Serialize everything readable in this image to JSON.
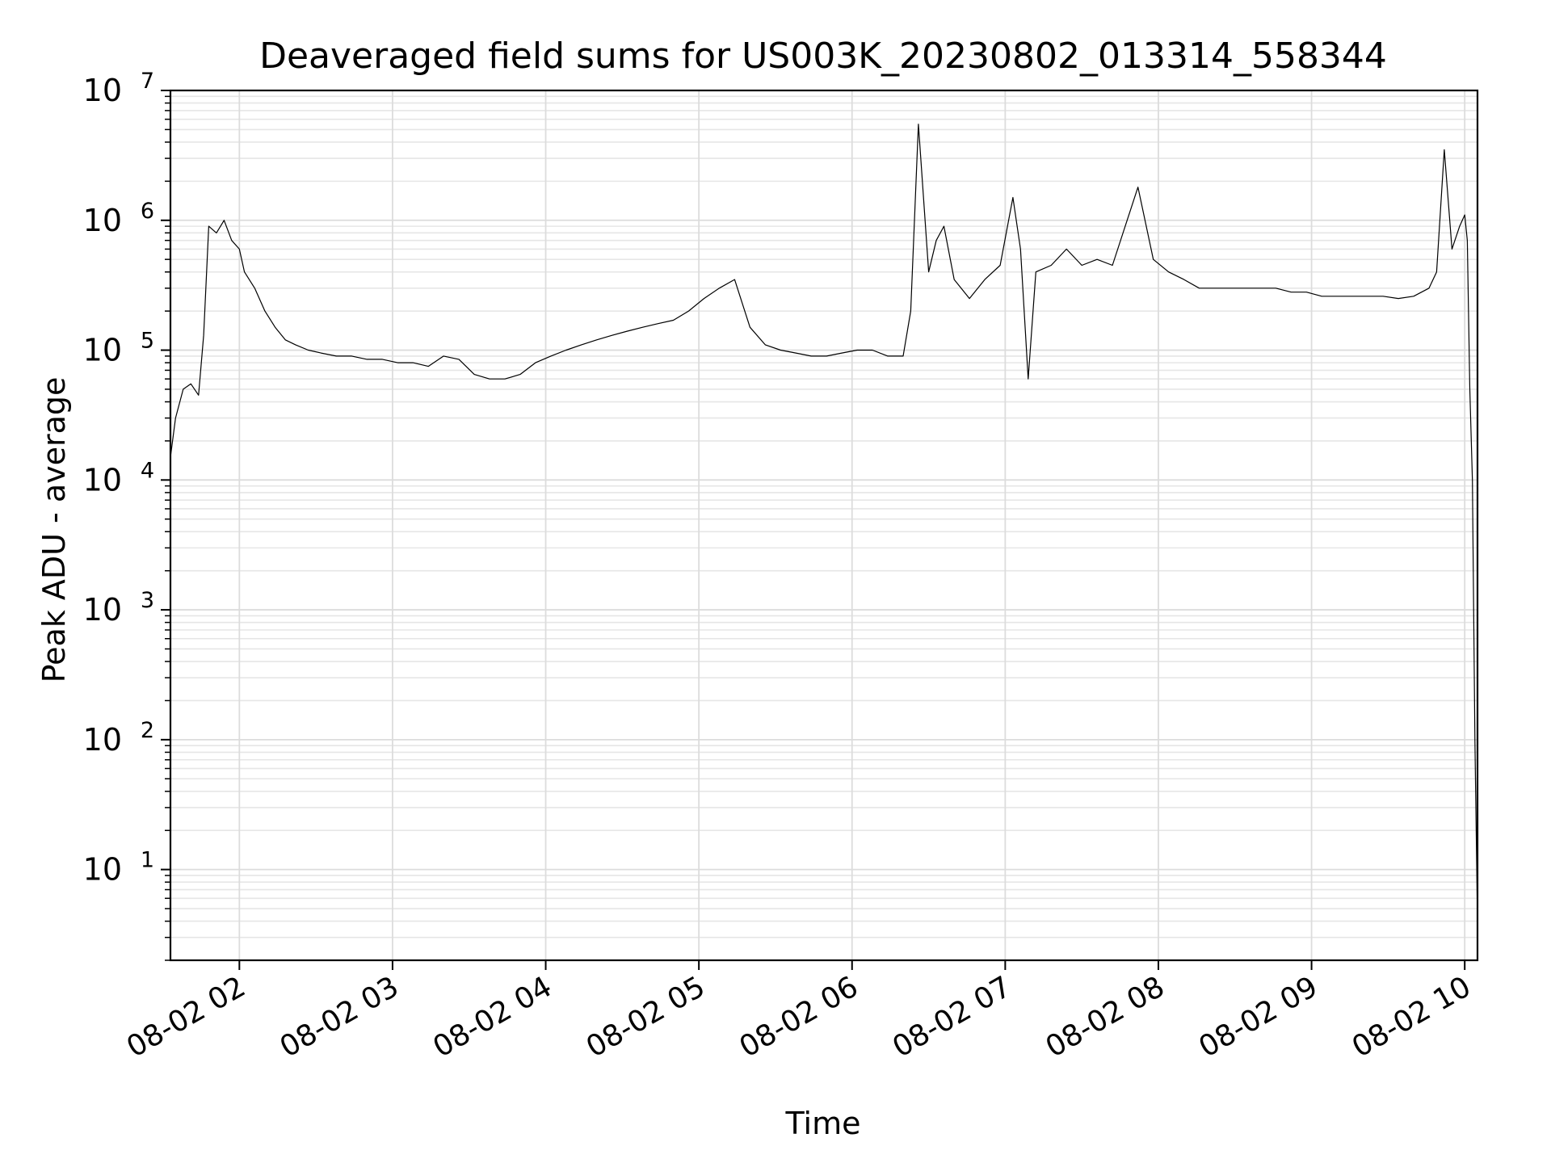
{
  "chart_data": {
    "type": "line",
    "title": "Deaveraged field sums for US003K_20230802_013314_558344",
    "xlabel": "Time",
    "ylabel": "Peak ADU - average",
    "yscale": "log",
    "ylim": [
      2,
      10000000
    ],
    "xlim": [
      "2023-08-02 01:33",
      "2023-08-02 10:05"
    ],
    "grid": true,
    "line_color": "#000000",
    "x_ticks": [
      {
        "value": "2023-08-02 02:00",
        "label": "08-02 02"
      },
      {
        "value": "2023-08-02 03:00",
        "label": "08-02 03"
      },
      {
        "value": "2023-08-02 04:00",
        "label": "08-02 04"
      },
      {
        "value": "2023-08-02 05:00",
        "label": "08-02 05"
      },
      {
        "value": "2023-08-02 06:00",
        "label": "08-02 06"
      },
      {
        "value": "2023-08-02 07:00",
        "label": "08-02 07"
      },
      {
        "value": "2023-08-02 08:00",
        "label": "08-02 08"
      },
      {
        "value": "2023-08-02 09:00",
        "label": "08-02 09"
      },
      {
        "value": "2023-08-02 10:00",
        "label": "08-02 10"
      }
    ],
    "y_ticks": [
      {
        "value": 10,
        "base": "10",
        "exp": "1"
      },
      {
        "value": 100,
        "base": "10",
        "exp": "2"
      },
      {
        "value": 1000,
        "base": "10",
        "exp": "3"
      },
      {
        "value": 10000,
        "base": "10",
        "exp": "4"
      },
      {
        "value": 100000,
        "base": "10",
        "exp": "5"
      },
      {
        "value": 1000000,
        "base": "10",
        "exp": "6"
      },
      {
        "value": 10000000,
        "base": "10",
        "exp": "7"
      }
    ],
    "series": [
      {
        "x": [
          "2023-08-02 01:33",
          "2023-08-02 01:35",
          "2023-08-02 01:38",
          "2023-08-02 01:41",
          "2023-08-02 01:44",
          "2023-08-02 01:46",
          "2023-08-02 01:48",
          "2023-08-02 01:51",
          "2023-08-02 01:54",
          "2023-08-02 01:57",
          "2023-08-02 02:00",
          "2023-08-02 02:02",
          "2023-08-02 02:06",
          "2023-08-02 02:10",
          "2023-08-02 02:14",
          "2023-08-02 02:18",
          "2023-08-02 02:22",
          "2023-08-02 02:27",
          "2023-08-02 02:32",
          "2023-08-02 02:38",
          "2023-08-02 02:44",
          "2023-08-02 02:50",
          "2023-08-02 02:56",
          "2023-08-02 03:02",
          "2023-08-02 03:08",
          "2023-08-02 03:14",
          "2023-08-02 03:20",
          "2023-08-02 03:26",
          "2023-08-02 03:32",
          "2023-08-02 03:38",
          "2023-08-02 03:44",
          "2023-08-02 03:50",
          "2023-08-02 03:56",
          "2023-08-02 04:02",
          "2023-08-02 04:08",
          "2023-08-02 04:14",
          "2023-08-02 04:20",
          "2023-08-02 04:26",
          "2023-08-02 04:32",
          "2023-08-02 04:38",
          "2023-08-02 04:44",
          "2023-08-02 04:50",
          "2023-08-02 04:56",
          "2023-08-02 05:02",
          "2023-08-02 05:08",
          "2023-08-02 05:14",
          "2023-08-02 05:20",
          "2023-08-02 05:26",
          "2023-08-02 05:32",
          "2023-08-02 05:38",
          "2023-08-02 05:44",
          "2023-08-02 05:50",
          "2023-08-02 05:56",
          "2023-08-02 06:02",
          "2023-08-02 06:08",
          "2023-08-02 06:14",
          "2023-08-02 06:20",
          "2023-08-02 06:23",
          "2023-08-02 06:26",
          "2023-08-02 06:30",
          "2023-08-02 06:33",
          "2023-08-02 06:36",
          "2023-08-02 06:40",
          "2023-08-02 06:46",
          "2023-08-02 06:52",
          "2023-08-02 06:58",
          "2023-08-02 07:03",
          "2023-08-02 07:06",
          "2023-08-02 07:09",
          "2023-08-02 07:12",
          "2023-08-02 07:18",
          "2023-08-02 07:24",
          "2023-08-02 07:30",
          "2023-08-02 07:36",
          "2023-08-02 07:42",
          "2023-08-02 07:47",
          "2023-08-02 07:52",
          "2023-08-02 07:58",
          "2023-08-02 08:04",
          "2023-08-02 08:10",
          "2023-08-02 08:16",
          "2023-08-02 08:22",
          "2023-08-02 08:28",
          "2023-08-02 08:34",
          "2023-08-02 08:40",
          "2023-08-02 08:46",
          "2023-08-02 08:52",
          "2023-08-02 08:58",
          "2023-08-02 09:04",
          "2023-08-02 09:10",
          "2023-08-02 09:16",
          "2023-08-02 09:22",
          "2023-08-02 09:28",
          "2023-08-02 09:34",
          "2023-08-02 09:40",
          "2023-08-02 09:46",
          "2023-08-02 09:49",
          "2023-08-02 09:52",
          "2023-08-02 09:55",
          "2023-08-02 09:58",
          "2023-08-02 10:00",
          "2023-08-02 10:01",
          "2023-08-02 10:02",
          "2023-08-02 10:03",
          "2023-08-02 10:04",
          "2023-08-02 10:05"
        ],
        "y": [
          15000,
          30000,
          50000,
          55000,
          45000,
          130000,
          900000,
          800000,
          1000000,
          700000,
          600000,
          400000,
          300000,
          200000,
          150000,
          120000,
          110000,
          100000,
          95000,
          90000,
          90000,
          85000,
          85000,
          80000,
          80000,
          75000,
          90000,
          85000,
          65000,
          60000,
          60000,
          65000,
          80000,
          90000,
          100000,
          110000,
          120000,
          130000,
          140000,
          150000,
          160000,
          170000,
          200000,
          250000,
          300000,
          350000,
          150000,
          110000,
          100000,
          95000,
          90000,
          90000,
          95000,
          100000,
          100000,
          90000,
          90000,
          200000,
          5500000,
          400000,
          700000,
          900000,
          350000,
          250000,
          350000,
          450000,
          1500000,
          600000,
          60000,
          400000,
          450000,
          600000,
          450000,
          500000,
          450000,
          900000,
          1800000,
          500000,
          400000,
          350000,
          300000,
          300000,
          300000,
          300000,
          300000,
          300000,
          280000,
          280000,
          260000,
          260000,
          260000,
          260000,
          260000,
          250000,
          260000,
          300000,
          400000,
          3500000,
          600000,
          900000,
          1100000,
          700000,
          50000,
          10000,
          100,
          4
        ]
      }
    ]
  }
}
